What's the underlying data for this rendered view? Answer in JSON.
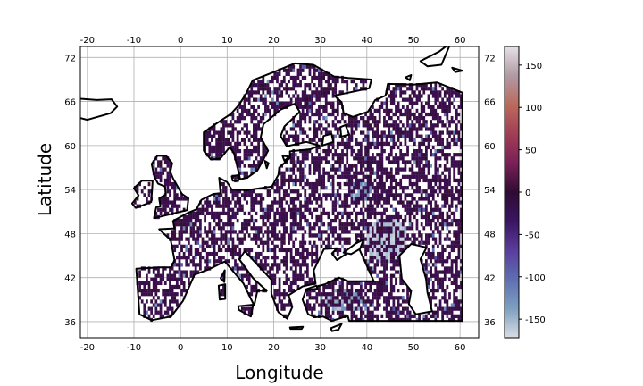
{
  "map": {
    "xlabel": "Longitude",
    "ylabel": "Latitude",
    "xlim": [
      -21.5,
      64
    ],
    "ylim": [
      33.8,
      73.5
    ],
    "lon_ticks": [
      -20,
      -10,
      0,
      10,
      20,
      30,
      40,
      50,
      60
    ],
    "lat_ticks": [
      72,
      66,
      60,
      54,
      48,
      42,
      36
    ],
    "grid": true,
    "region": "Europe",
    "data_extent_lon": [
      -12,
      60
    ],
    "coastline_color": "#000000",
    "dominant_color": "#3b0f4e",
    "anomaly_color": "#c9c6e6"
  },
  "colorbar": {
    "vmin": -172,
    "vmax": 172,
    "ticks": [
      150,
      100,
      50,
      0,
      -50,
      -100,
      -150
    ],
    "colors": [
      "#e6e1e6",
      "#b09aa4",
      "#bb6a5c",
      "#a13f55",
      "#7a2058",
      "#2f0c33",
      "#3a1562",
      "#5a3d9c",
      "#5e6fb2",
      "#7ea0c0",
      "#d9dde4"
    ]
  }
}
